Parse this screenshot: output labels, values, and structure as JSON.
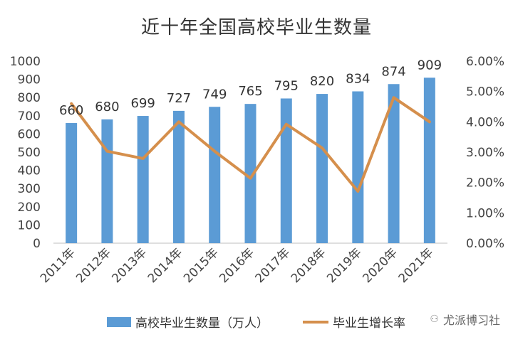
{
  "chart_data": {
    "type": "bar",
    "title": "近十年全国高校毕业生数量",
    "categories": [
      "2011年",
      "2012年",
      "2013年",
      "2014年",
      "2015年",
      "2016年",
      "2017年",
      "2018年",
      "2019年",
      "2020年",
      "2021年"
    ],
    "series": [
      {
        "name": "高校毕业生数量（万人）",
        "type": "bar",
        "axis": "left",
        "values": [
          660,
          680,
          699,
          727,
          749,
          765,
          795,
          820,
          834,
          874,
          909
        ],
        "color": "#5B9BD5"
      },
      {
        "name": "毕业生增长率",
        "type": "line",
        "axis": "right",
        "values": [
          4.6,
          3.03,
          2.79,
          4.0,
          3.03,
          2.14,
          3.92,
          3.14,
          1.71,
          4.8,
          4.0
        ],
        "color": "#D58F4C"
      }
    ],
    "y_left": {
      "min": 0,
      "max": 1000,
      "step": 100,
      "ticks": [
        "0",
        "100",
        "200",
        "300",
        "400",
        "500",
        "600",
        "700",
        "800",
        "900",
        "1000"
      ]
    },
    "y_right": {
      "min": 0,
      "max": 6,
      "step": 1,
      "ticks": [
        "0.00%",
        "1.00%",
        "2.00%",
        "3.00%",
        "4.00%",
        "5.00%",
        "6.00%"
      ]
    },
    "data_labels": [
      "660",
      "680",
      "699",
      "727",
      "749",
      "765",
      "795",
      "820",
      "834",
      "874",
      "909"
    ],
    "grid": false,
    "legend": "bottom"
  },
  "legend": {
    "bar_label": "高校毕业生数量（万人）",
    "line_label": "毕业生增长率"
  },
  "watermark": {
    "text": "尤派博习社",
    "icon": "wechat-icon"
  }
}
